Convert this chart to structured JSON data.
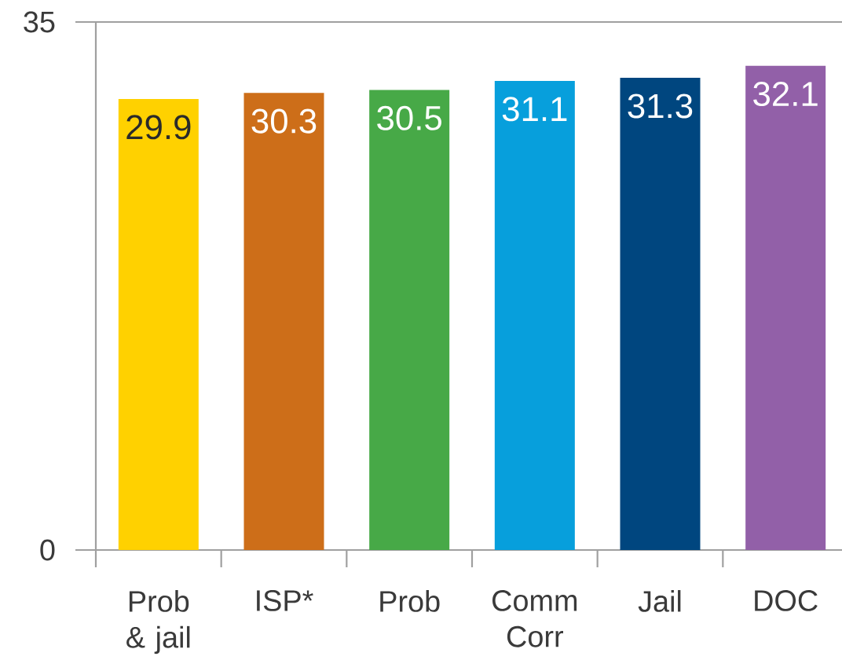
{
  "chart_data": {
    "type": "bar",
    "categories": [
      "Prob & jail",
      "ISP*",
      "Prob",
      "Comm Corr",
      "Jail",
      "DOC"
    ],
    "values": [
      29.9,
      30.3,
      30.5,
      31.1,
      31.3,
      32.1
    ],
    "colors": [
      "#ffd100",
      "#cd6e19",
      "#47a947",
      "#079fdc",
      "#00467f",
      "#9260a8"
    ],
    "ylim": [
      0,
      35
    ],
    "yticks": [
      0,
      35
    ],
    "data_labels": true
  }
}
